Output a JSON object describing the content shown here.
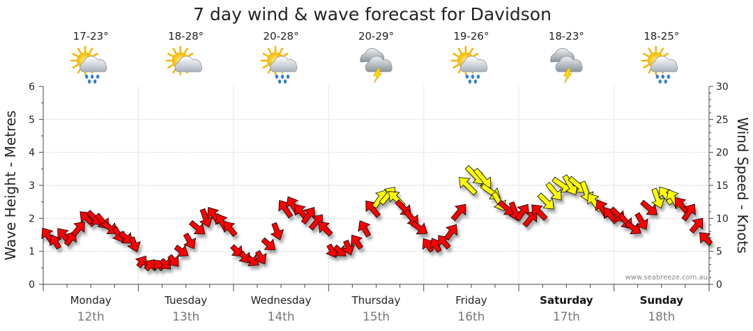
{
  "chart_data": {
    "type": "line",
    "title": "7 day wind & wave forecast for Davidson",
    "ylabel_left": "Wave Height - Metres",
    "ylabel_right": "Wind Speed - Knots",
    "ylim_left": [
      0,
      6
    ],
    "ylim_right": [
      0,
      30
    ],
    "yticks_left": [
      "0",
      "1",
      "2",
      "3",
      "4",
      "5",
      "6"
    ],
    "yticks_right": [
      "0",
      "5",
      "10",
      "15",
      "20",
      "25",
      "30"
    ],
    "grid": true,
    "credit": "www.seabreeze.com.au",
    "days": [
      {
        "day": "Monday",
        "date": "12th",
        "temp": "17-23°",
        "icon": "sun-cloud-rain-icon",
        "bold": false
      },
      {
        "day": "Tuesday",
        "date": "13th",
        "temp": "18-28°",
        "icon": "sun-cloud-icon",
        "bold": false
      },
      {
        "day": "Wednesday",
        "date": "14th",
        "temp": "20-28°",
        "icon": "sun-cloud-rain-icon",
        "bold": false
      },
      {
        "day": "Thursday",
        "date": "15th",
        "temp": "20-29°",
        "icon": "cloud-storm-icon",
        "bold": false
      },
      {
        "day": "Friday",
        "date": "16th",
        "temp": "19-26°",
        "icon": "sun-cloud-rain-icon",
        "bold": false
      },
      {
        "day": "Saturday",
        "date": "17th",
        "temp": "18-23°",
        "icon": "cloud-storm-icon",
        "bold": true
      },
      {
        "day": "Sunday",
        "date": "18th",
        "temp": "18-25°",
        "icon": "sun-cloud-rain-icon",
        "bold": true
      }
    ],
    "x_days_start": 0,
    "x_days_end": 7,
    "series": [
      {
        "wind_knots": [
          8,
          6,
          8,
          7,
          9,
          11,
          10,
          10,
          9,
          8,
          7,
          6
        ],
        "wave_m": [
          1.5,
          1.3,
          1.5,
          1.4,
          1.7,
          2.0,
          2.0,
          1.9,
          1.7,
          1.5,
          1.4,
          1.2
        ]
      },
      {
        "wind_knots": [
          3,
          3,
          3,
          3,
          4,
          6,
          8,
          10,
          11,
          11,
          10,
          9
        ],
        "wave_m": [
          0.7,
          0.6,
          0.6,
          0.6,
          0.7,
          1.0,
          1.3,
          1.7,
          2.0,
          2.1,
          1.9,
          1.7
        ]
      },
      {
        "wind_knots": [
          5,
          4,
          4,
          5,
          7,
          9,
          12,
          12,
          11,
          11,
          10,
          9
        ],
        "wave_m": [
          1.0,
          0.8,
          0.7,
          0.8,
          1.2,
          1.6,
          2.3,
          2.4,
          2.2,
          2.1,
          1.9,
          1.7
        ]
      },
      {
        "wind_knots": [
          5,
          5,
          6,
          7,
          9,
          12,
          13,
          14,
          13,
          12,
          11,
          10
        ],
        "wave_m": [
          1.0,
          1.0,
          1.1,
          1.3,
          1.7,
          2.3,
          2.6,
          2.7,
          2.6,
          2.3,
          2.0,
          1.7
        ]
      },
      {
        "wind_knots": [
          6,
          6,
          7,
          9,
          12,
          16,
          17,
          17,
          15,
          13,
          12,
          12
        ],
        "wave_m": [
          1.2,
          1.2,
          1.3,
          1.6,
          2.2,
          3.0,
          3.3,
          3.2,
          2.8,
          2.5,
          2.3,
          2.2
        ]
      },
      {
        "wind_knots": [
          10,
          11,
          12,
          13,
          14,
          15,
          15,
          15,
          14,
          13,
          12,
          11
        ],
        "wave_m": [
          2.2,
          2.0,
          2.2,
          2.5,
          2.8,
          3.0,
          3.0,
          3.0,
          2.8,
          2.5,
          2.3,
          2.1
        ]
      },
      {
        "wind_knots": [
          10,
          10,
          9,
          10,
          12,
          13,
          13,
          13,
          12,
          11,
          9,
          7
        ],
        "wave_m": [
          2.1,
          1.9,
          1.7,
          1.9,
          2.3,
          2.6,
          2.7,
          2.6,
          2.4,
          2.2,
          1.8,
          1.4
        ]
      }
    ],
    "wind_colors": {
      "light": "#ff0000",
      "strong": "#ffff00"
    },
    "strong_threshold_knots": 13
  }
}
